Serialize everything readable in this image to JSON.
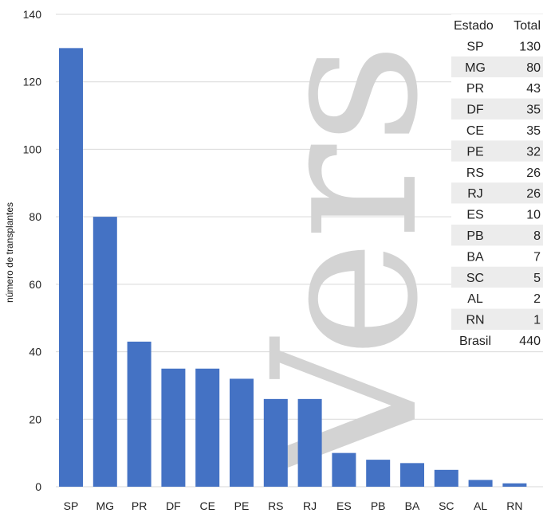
{
  "chart_data": {
    "type": "bar",
    "ylabel": "número de transplantes",
    "ylim": [
      0,
      140
    ],
    "yticks": [
      0,
      20,
      40,
      60,
      80,
      100,
      120,
      140
    ],
    "grid": true,
    "categories": [
      "SP",
      "MG",
      "PR",
      "DF",
      "CE",
      "PE",
      "RS",
      "RJ",
      "ES",
      "PB",
      "BA",
      "SC",
      "AL",
      "RN"
    ],
    "values": [
      130,
      80,
      43,
      35,
      35,
      32,
      26,
      26,
      10,
      8,
      7,
      5,
      2,
      1
    ],
    "bar_color": "#4472C4"
  },
  "table": {
    "headers": [
      "Estado",
      "Total"
    ],
    "rows": [
      [
        "SP",
        "130"
      ],
      [
        "MG",
        "80"
      ],
      [
        "PR",
        "43"
      ],
      [
        "DF",
        "35"
      ],
      [
        "CE",
        "35"
      ],
      [
        "PE",
        "32"
      ],
      [
        "RS",
        "26"
      ],
      [
        "RJ",
        "26"
      ],
      [
        "ES",
        "10"
      ],
      [
        "PB",
        "8"
      ],
      [
        "BA",
        "7"
      ],
      [
        "SC",
        "5"
      ],
      [
        "AL",
        "2"
      ],
      [
        "RN",
        "1"
      ],
      [
        "Brasil",
        "440"
      ]
    ]
  },
  "watermark": {
    "text": "Vers",
    "color": "#d3d3d3"
  }
}
